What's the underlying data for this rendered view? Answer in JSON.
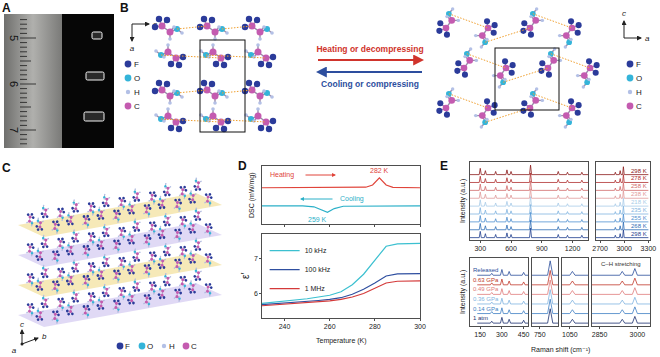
{
  "panels": {
    "A": {
      "label": "A",
      "ruler_numbers": [
        "5",
        "6",
        "7"
      ]
    },
    "B": {
      "label": "B",
      "legend": [
        {
          "label": "F",
          "color": "#2b3b9a"
        },
        {
          "label": "O",
          "color": "#34b4d9"
        },
        {
          "label": "H",
          "color": "#b3c0e6"
        },
        {
          "label": "C",
          "color": "#c45bb0"
        }
      ],
      "left_axes": [
        "a",
        "c"
      ],
      "right_axes": [
        "a",
        "c"
      ],
      "forward": "Heating or decompressing",
      "backward": "Cooling or compressing"
    },
    "C": {
      "label": "C",
      "axes": [
        "c",
        "b",
        "a"
      ],
      "legend": [
        {
          "label": "F",
          "color": "#2b3b9a"
        },
        {
          "label": "O",
          "color": "#34b4d9"
        },
        {
          "label": "H",
          "color": "#b3c0e6"
        },
        {
          "label": "C",
          "color": "#c45bb0"
        }
      ]
    },
    "D": {
      "label": "D"
    },
    "E": {
      "label": "E"
    }
  },
  "chart_data": [
    {
      "type": "line",
      "ylabel": "DSC (mW/mg)",
      "xlim": [
        230,
        300
      ],
      "ylim": [
        -1.0,
        2.2
      ],
      "xticks": [
        240,
        260,
        280,
        300
      ],
      "tick_labels": false,
      "series": [
        {
          "name": "Heating",
          "color": "#e0443a",
          "x": [
            230,
            270,
            276,
            279,
            282,
            285,
            288,
            300
          ],
          "values": [
            1.0,
            1.0,
            1.03,
            1.15,
            1.55,
            1.15,
            1.02,
            1.0
          ],
          "annotation": "282 K"
        },
        {
          "name": "Cooling",
          "color": "#2bb0c8",
          "x": [
            230,
            248,
            253,
            256,
            259,
            262,
            266,
            300
          ],
          "values": [
            0,
            0,
            -0.05,
            -0.18,
            -0.35,
            -0.15,
            -0.02,
            0
          ],
          "annotation": "259 K"
        }
      ]
    },
    {
      "type": "line",
      "xlabel": "Temperature (K)",
      "ylabel": "ε′",
      "xlim": [
        230,
        300
      ],
      "ylim": [
        5.3,
        7.7
      ],
      "xticks": [
        240,
        260,
        280,
        300
      ],
      "yticks": [
        6,
        7
      ],
      "legend": "upper left",
      "x": [
        230,
        235,
        240,
        245,
        250,
        255,
        260,
        265,
        270,
        275,
        280,
        285,
        290,
        295,
        300
      ],
      "series": [
        {
          "name": "10 kHz",
          "color": "#3cc0d0",
          "values": [
            5.72,
            5.75,
            5.78,
            5.8,
            5.85,
            5.9,
            5.95,
            6.05,
            6.25,
            6.55,
            6.95,
            7.35,
            7.42,
            7.43,
            7.43
          ]
        },
        {
          "name": "100 kHz",
          "color": "#2f4fa0",
          "values": [
            5.68,
            5.7,
            5.72,
            5.74,
            5.77,
            5.8,
            5.83,
            5.88,
            5.98,
            6.12,
            6.3,
            6.5,
            6.56,
            6.57,
            6.57
          ]
        },
        {
          "name": "1 MHz",
          "color": "#d43a3a",
          "values": [
            5.65,
            5.67,
            5.69,
            5.71,
            5.73,
            5.76,
            5.79,
            5.83,
            5.9,
            6.0,
            6.15,
            6.3,
            6.35,
            6.36,
            6.36
          ]
        }
      ]
    },
    {
      "type": "line",
      "ylabel": "Intensity (a.u.)",
      "tick_labels": "x",
      "xlim": [
        200,
        1350
      ],
      "xticks": [
        300,
        600,
        900,
        1200
      ],
      "x2lim": [
        2650,
        3320
      ],
      "x2ticks": [
        2700,
        3000,
        3300
      ],
      "ylim": [
        -0.3,
        9.6
      ],
      "x": [
        200,
        290,
        300,
        310,
        340,
        350,
        360,
        440,
        450,
        460,
        550,
        560,
        570,
        590,
        600,
        610,
        780,
        790,
        800,
        1050,
        1060,
        1070,
        1140,
        1150,
        1160,
        1280,
        1290,
        1300,
        1350,
        2650,
        2880,
        2890,
        2900,
        2940,
        2950,
        2960,
        2980,
        2990,
        3000,
        3300
      ],
      "series": [
        {
          "name": "298 K",
          "color": "#8b1a1a",
          "values": [
            8,
            8,
            8.8,
            8,
            8,
            8.5,
            8,
            8,
            8.4,
            8,
            8,
            8.6,
            8,
            8,
            8.4,
            8,
            8,
            9.2,
            8,
            8,
            8.4,
            8,
            8,
            8.3,
            8,
            8,
            8.3,
            8,
            8,
            8,
            8,
            8.3,
            8,
            8,
            8.5,
            8,
            8,
            9,
            8,
            8
          ]
        },
        {
          "name": "278 K",
          "color": "#b03030",
          "values": [
            7,
            7,
            7.8,
            7,
            7,
            7.5,
            7,
            7,
            7.4,
            7,
            7,
            7.6,
            7,
            7,
            7.4,
            7,
            7,
            8.2,
            7,
            7,
            7.4,
            7,
            7,
            7.3,
            7,
            7,
            7.3,
            7,
            7,
            7,
            7,
            7.3,
            7,
            7,
            7.5,
            7,
            7,
            8,
            7,
            7
          ]
        },
        {
          "name": "258 K",
          "color": "#d06a6a",
          "values": [
            6,
            6,
            6.8,
            6,
            6,
            6.5,
            6,
            6,
            6.4,
            6,
            6,
            6.6,
            6,
            6,
            6.4,
            6,
            6,
            7.2,
            6,
            6,
            6.4,
            6,
            6,
            6.3,
            6,
            6,
            6.3,
            6,
            6,
            6,
            6,
            6.3,
            6,
            6,
            6.5,
            6,
            6,
            7,
            6,
            6
          ]
        },
        {
          "name": "238 K",
          "color": "#e09a9a",
          "values": [
            5,
            5,
            5.8,
            5,
            5,
            5.5,
            5,
            5,
            5.4,
            5,
            5,
            5.6,
            5,
            5,
            5.4,
            5,
            5,
            6.2,
            5,
            5,
            5.4,
            5,
            5,
            5.3,
            5,
            5,
            5.3,
            5,
            5,
            5,
            5,
            5.3,
            5,
            5,
            5.5,
            5,
            5,
            6,
            5,
            5
          ]
        },
        {
          "name": "218 K",
          "color": "#a8cce8",
          "values": [
            4,
            4,
            4.8,
            4,
            4,
            4.5,
            4,
            4,
            4.4,
            4,
            4,
            4.6,
            4,
            4,
            4.4,
            4,
            4,
            5.2,
            4,
            4,
            4.4,
            4,
            4,
            4.3,
            4,
            4,
            4.3,
            4,
            4,
            4,
            4,
            4.3,
            4,
            4,
            4.5,
            4,
            4,
            5,
            4,
            4
          ]
        },
        {
          "name": "235 K",
          "color": "#80b4e0",
          "values": [
            3,
            3,
            3.8,
            3,
            3,
            3.5,
            3,
            3,
            3.4,
            3,
            3,
            3.6,
            3,
            3,
            3.4,
            3,
            3,
            4.2,
            3,
            3,
            3.4,
            3,
            3,
            3.3,
            3,
            3,
            3.3,
            3,
            3,
            3,
            3,
            3.3,
            3,
            3,
            3.5,
            3,
            3,
            4,
            3,
            3
          ]
        },
        {
          "name": "255 K",
          "color": "#4f8fcf",
          "values": [
            2,
            2,
            2.8,
            2,
            2,
            2.5,
            2,
            2,
            2.4,
            2,
            2,
            2.6,
            2,
            2,
            2.4,
            2,
            2,
            3.2,
            2,
            2,
            2.4,
            2,
            2,
            2.3,
            2,
            2,
            2.3,
            2,
            2,
            2,
            2,
            2.3,
            2,
            2,
            2.5,
            2,
            2,
            3,
            2,
            2
          ]
        },
        {
          "name": "268 K",
          "color": "#2f6db5",
          "values": [
            1,
            1,
            1.8,
            1,
            1,
            1.5,
            1,
            1,
            1.4,
            1,
            1,
            1.6,
            1,
            1,
            1.4,
            1,
            1,
            2.2,
            1,
            1,
            1.4,
            1,
            1,
            1.3,
            1,
            1,
            1.3,
            1,
            1,
            1,
            1,
            1.3,
            1,
            1,
            1.5,
            1,
            1,
            2,
            1,
            1
          ]
        },
        {
          "name": "298 K",
          "color": "#1f3f8f",
          "values": [
            0,
            0,
            0.8,
            0,
            0,
            0.5,
            0,
            0,
            0.4,
            0,
            0,
            0.6,
            0,
            0,
            0.4,
            0,
            0,
            1.2,
            0,
            0,
            0.4,
            0,
            0,
            0.3,
            0,
            0,
            0.3,
            0,
            0,
            0,
            0,
            0.3,
            0,
            0,
            0.5,
            0,
            0,
            1,
            0,
            0
          ]
        }
      ]
    },
    {
      "type": "line",
      "ylabel": "Intensity (a.u.)",
      "xlabel": "Raman shift (cm⁻¹)",
      "tick_labels": "x",
      "annotations": [
        "C–H stretching"
      ],
      "xlim": [
        80,
        480
      ],
      "xticks": [
        150,
        300,
        450
      ],
      "x2lim": [
        720,
        820
      ],
      "x2ticks": [
        750
      ],
      "x3lim": [
        1020,
        1120
      ],
      "x3ticks": [
        1050
      ],
      "x4lim": [
        2820,
        3050
      ],
      "x4ticks": [
        2850,
        3000
      ],
      "ylim": [
        -0.3,
        6.8
      ],
      "x": [
        130,
        220,
        230,
        240,
        290,
        300,
        310,
        340,
        350,
        360,
        440,
        450,
        460,
        480,
        720,
        780,
        790,
        800,
        820,
        1020,
        1050,
        1060,
        1070,
        1120,
        2820,
        2930,
        2940,
        2950,
        2980,
        2990,
        3000,
        3050
      ],
      "series": [
        {
          "name": "Released",
          "color": "#2a4d9b",
          "values": [
            5,
            5,
            5.2,
            5,
            5,
            5.6,
            5,
            5,
            5.4,
            5,
            5,
            5.3,
            5,
            5,
            5,
            5,
            6.5,
            5,
            5,
            5,
            5,
            5.4,
            5,
            5,
            5,
            5,
            5.4,
            5,
            5,
            5.7,
            5,
            5
          ]
        },
        {
          "name": "0.63 GPa",
          "color": "#c0392b",
          "values": [
            4,
            4,
            4.2,
            4,
            4,
            4.6,
            4,
            4,
            4.4,
            4,
            4,
            4.3,
            4,
            4,
            4,
            4,
            5.5,
            4,
            4,
            4,
            4,
            4.4,
            4,
            4,
            4,
            4,
            4.4,
            4,
            4,
            4.7,
            4,
            4
          ]
        },
        {
          "name": "0.49 GPa",
          "color": "#e07b7b",
          "values": [
            3,
            3,
            3.2,
            3,
            3,
            3.6,
            3,
            3,
            3.4,
            3,
            3,
            3.3,
            3,
            3,
            3,
            3,
            4.5,
            3,
            3,
            3,
            3,
            3.4,
            3,
            3,
            3,
            3,
            3.4,
            3,
            3,
            3.7,
            3,
            3
          ]
        },
        {
          "name": "0.36 GPa",
          "color": "#7fb3e0",
          "values": [
            2,
            2,
            2.2,
            2,
            2,
            2.6,
            2,
            2,
            2.4,
            2,
            2,
            2.3,
            2,
            2,
            2,
            2,
            3.5,
            2,
            2,
            2,
            2,
            2.4,
            2,
            2,
            2,
            2,
            2.4,
            2,
            2,
            2.7,
            2,
            2
          ]
        },
        {
          "name": "0.14 GPa",
          "color": "#3f7fc4",
          "values": [
            1,
            1,
            1.2,
            1,
            1,
            1.6,
            1,
            1,
            1.4,
            1,
            1,
            1.3,
            1,
            1,
            1,
            1,
            2.5,
            1,
            1,
            1,
            1,
            1.4,
            1,
            1,
            1,
            1,
            1.4,
            1,
            1,
            1.7,
            1,
            1
          ]
        },
        {
          "name": "1 atm",
          "color": "#1a2f6f",
          "values": [
            0,
            0,
            0.2,
            0,
            0,
            0.6,
            0,
            0,
            0.4,
            0,
            0,
            0.3,
            0,
            0,
            0,
            0,
            1.5,
            0,
            0,
            0,
            0,
            0.4,
            0,
            0,
            0,
            0,
            0.4,
            0,
            0,
            0.7,
            0,
            0
          ]
        }
      ]
    }
  ]
}
